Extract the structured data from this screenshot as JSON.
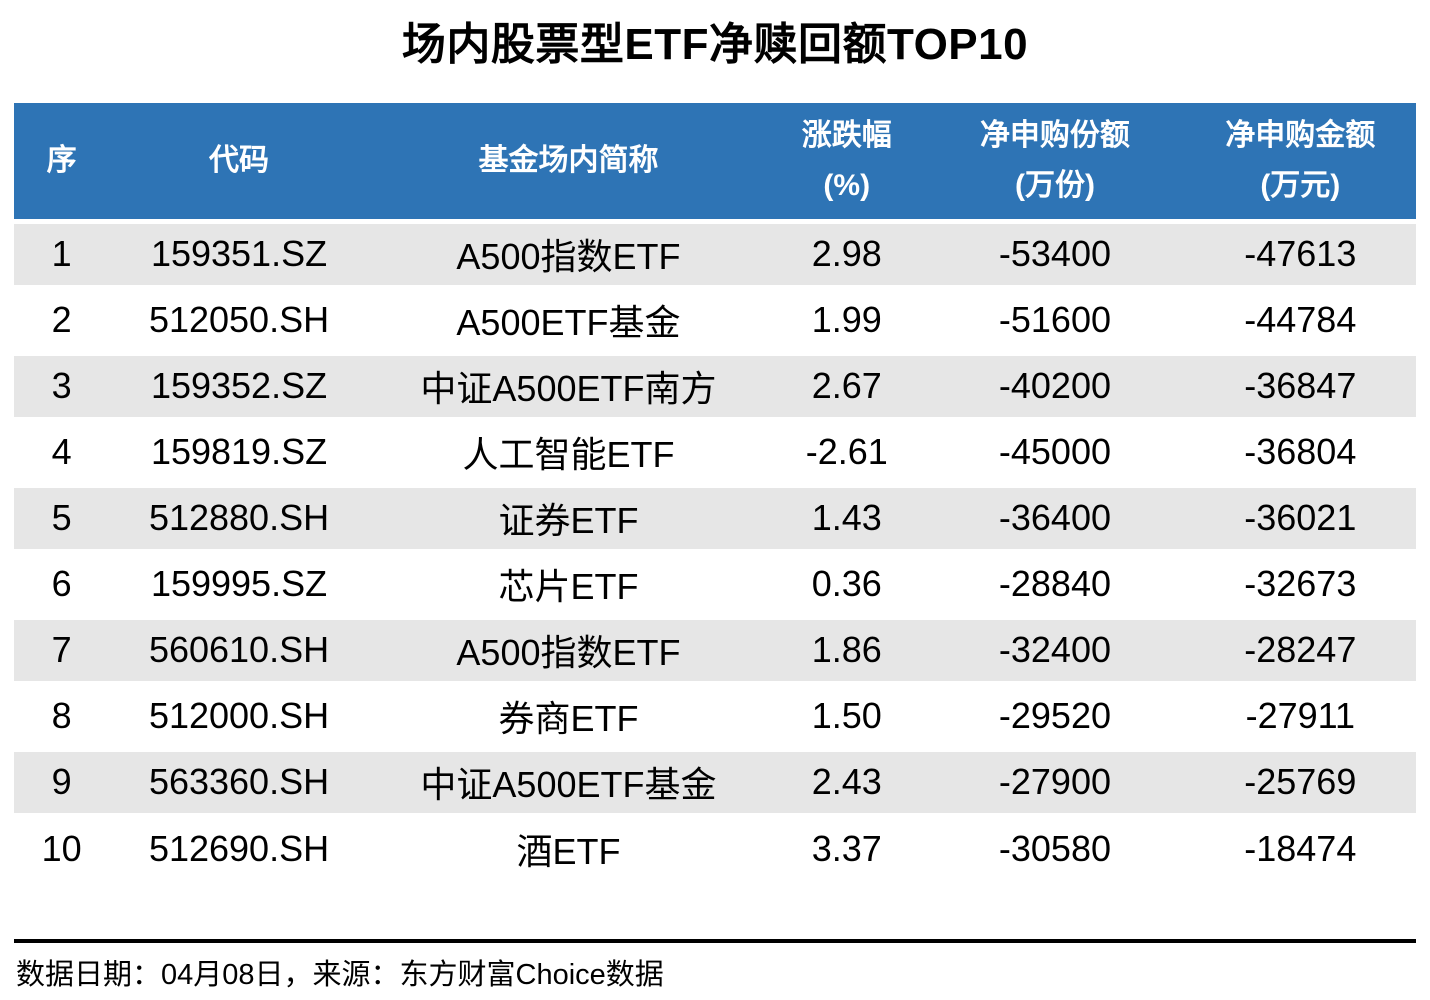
{
  "colors": {
    "header_bg": "#2E74B5",
    "header_text": "#FFFFFF",
    "row_stripe": "#E6E6E6",
    "row_alt": "#FFFFFF",
    "text": "#000000"
  },
  "chart_data": {
    "type": "table",
    "title": "场内股票型ETF净赎回额TOP10",
    "legend_position": "none",
    "grid": "banded-rows",
    "columns": [
      {
        "key": "rank",
        "label": "序",
        "unit": ""
      },
      {
        "key": "code",
        "label": "代码",
        "unit": ""
      },
      {
        "key": "name",
        "label": "基金场内简称",
        "unit": ""
      },
      {
        "key": "change",
        "label": "涨跌幅",
        "unit": "(%)"
      },
      {
        "key": "net_shares",
        "label": "净申购份额",
        "unit": "(万份)"
      },
      {
        "key": "net_amount",
        "label": "净申购金额",
        "unit": "(万元)"
      }
    ],
    "rows": [
      {
        "rank": "1",
        "code": "159351.SZ",
        "name": "A500指数ETF",
        "change": "2.98",
        "net_shares": "-53400",
        "net_amount": "-47613"
      },
      {
        "rank": "2",
        "code": "512050.SH",
        "name": "A500ETF基金",
        "change": "1.99",
        "net_shares": "-51600",
        "net_amount": "-44784"
      },
      {
        "rank": "3",
        "code": "159352.SZ",
        "name": "中证A500ETF南方",
        "change": "2.67",
        "net_shares": "-40200",
        "net_amount": "-36847"
      },
      {
        "rank": "4",
        "code": "159819.SZ",
        "name": "人工智能ETF",
        "change": "-2.61",
        "net_shares": "-45000",
        "net_amount": "-36804"
      },
      {
        "rank": "5",
        "code": "512880.SH",
        "name": "证券ETF",
        "change": "1.43",
        "net_shares": "-36400",
        "net_amount": "-36021"
      },
      {
        "rank": "6",
        "code": "159995.SZ",
        "name": "芯片ETF",
        "change": "0.36",
        "net_shares": "-28840",
        "net_amount": "-32673"
      },
      {
        "rank": "7",
        "code": "560610.SH",
        "name": "A500指数ETF",
        "change": "1.86",
        "net_shares": "-32400",
        "net_amount": "-28247"
      },
      {
        "rank": "8",
        "code": "512000.SH",
        "name": "券商ETF",
        "change": "1.50",
        "net_shares": "-29520",
        "net_amount": "-27911"
      },
      {
        "rank": "9",
        "code": "563360.SH",
        "name": "中证A500ETF基金",
        "change": "2.43",
        "net_shares": "-27900",
        "net_amount": "-25769"
      },
      {
        "rank": "10",
        "code": "512690.SH",
        "name": "酒ETF",
        "change": "3.37",
        "net_shares": "-30580",
        "net_amount": "-18474"
      }
    ],
    "source_note": "数据日期：04月08日，来源：东方财富Choice数据"
  }
}
